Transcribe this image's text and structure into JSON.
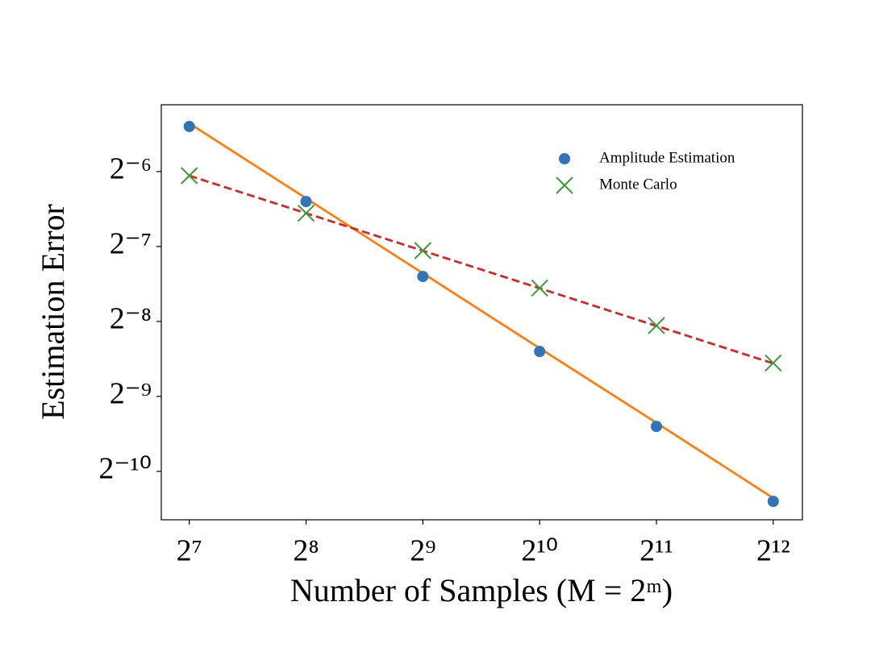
{
  "chart_data": {
    "type": "line",
    "xlabel": "Number of Samples (M = 2ᵐ)",
    "ylabel": "Estimation Error",
    "x": [
      128,
      256,
      512,
      1024,
      2048,
      4096
    ],
    "series": [
      {
        "name": "Amplitude Estimation",
        "color": "#3274b8",
        "marker": "circle",
        "values": [
          0.0237,
          0.01184,
          0.00592,
          0.00296,
          0.00148,
          0.00074
        ]
      },
      {
        "name": "Monte Carlo",
        "color": "#3a9d3a",
        "marker": "x",
        "values": [
          0.01504,
          0.01063,
          0.00752,
          0.00532,
          0.00376,
          0.00266
        ]
      },
      {
        "color": "#ff7f0e",
        "linestyle": "solid",
        "values": [
          0.0244,
          0.0122,
          0.0061,
          0.00305,
          0.00153,
          0.000763
        ]
      },
      {
        "color": "#d62728",
        "linestyle": "dashed",
        "values": [
          0.01504,
          0.01063,
          0.00751,
          0.00531,
          0.00375,
          0.00265
        ]
      }
    ],
    "xscale": "log2",
    "yscale": "log2",
    "xlim": [
      108.4,
      4871
    ],
    "ylim": [
      0.000624,
      0.02898
    ],
    "xticks": [
      {
        "value": 128,
        "label": "2⁷"
      },
      {
        "value": 256,
        "label": "2⁸"
      },
      {
        "value": 512,
        "label": "2⁹"
      },
      {
        "value": 1024,
        "label": "2¹⁰"
      },
      {
        "value": 2048,
        "label": "2¹¹"
      },
      {
        "value": 4096,
        "label": "2¹²"
      }
    ],
    "yticks": [
      {
        "value": 0.015625,
        "label": "2⁻⁶"
      },
      {
        "value": 0.0078125,
        "label": "2⁻⁷"
      },
      {
        "value": 0.00390625,
        "label": "2⁻⁸"
      },
      {
        "value": 0.001953125,
        "label": "2⁻⁹"
      },
      {
        "value": 0.0009765625,
        "label": "2⁻¹⁰"
      }
    ],
    "legend": "upper right",
    "grid": false
  }
}
